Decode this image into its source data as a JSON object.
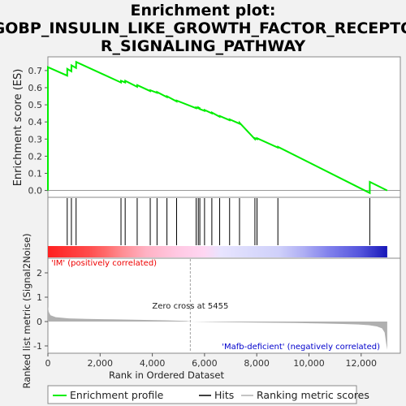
{
  "title_line1": "Enrichment plot:",
  "title_line2": "GOBP_INSULIN_LIKE_GROWTH_FACTOR_RECEPTO",
  "title_line3": "R_SIGNALING_PATHWAY",
  "colors": {
    "es_line": "#00ee00",
    "hits": "#000000",
    "metric_fill": "#b0b0b0",
    "positive_label": "#ee0000",
    "negative_label": "#0000cc",
    "zero_cross_line": "#a0a0a0",
    "frame_bg": "#f2f2f2"
  },
  "chart_data": {
    "type": "line",
    "top_panel": {
      "ylabel": "Enrichment score (ES)",
      "ylim": [
        -0.04,
        0.78
      ],
      "yticks": [
        0.0,
        0.1,
        0.2,
        0.3,
        0.4,
        0.5,
        0.6,
        0.7
      ],
      "ytick_labels": [
        "0.0",
        "0.1",
        "0.2",
        "0.3",
        "0.4",
        "0.5",
        "0.6",
        "0.7"
      ],
      "series": [
        {
          "name": "Enrichment profile",
          "x": [
            0,
            1,
            740,
            741,
            900,
            901,
            1080,
            1081,
            2800,
            2801,
            2960,
            2961,
            3420,
            3421,
            3920,
            3921,
            4180,
            4181,
            4560,
            4561,
            4930,
            4931,
            5680,
            5681,
            5760,
            5761,
            5820,
            5821,
            6000,
            6001,
            6280,
            6281,
            6580,
            6581,
            6960,
            6961,
            7340,
            7341,
            7930,
            7931,
            8010,
            8011,
            8810,
            8811,
            12330,
            12331,
            13000
          ],
          "y": [
            0.0,
            0.72,
            0.67,
            0.71,
            0.695,
            0.73,
            0.715,
            0.75,
            0.63,
            0.64,
            0.63,
            0.64,
            0.605,
            0.615,
            0.58,
            0.585,
            0.57,
            0.575,
            0.545,
            0.55,
            0.52,
            0.525,
            0.48,
            0.485,
            0.48,
            0.485,
            0.48,
            0.475,
            0.465,
            0.47,
            0.45,
            0.455,
            0.43,
            0.435,
            0.41,
            0.415,
            0.39,
            0.395,
            0.3,
            0.305,
            0.3,
            0.305,
            0.25,
            0.255,
            -0.015,
            0.05,
            0.0
          ]
        }
      ]
    },
    "hits": [
      740,
      900,
      1080,
      2800,
      2960,
      3420,
      3920,
      4180,
      4560,
      4930,
      5680,
      5760,
      5820,
      6000,
      6280,
      6580,
      6960,
      7340,
      7930,
      8010,
      8810,
      12330
    ],
    "bottom_panel": {
      "ylabel": "Ranked list metric (Signal2Noise)",
      "ylim": [
        -1.3,
        2.6
      ],
      "yticks": [
        -1,
        0,
        1,
        2
      ],
      "ytick_labels": [
        "-1",
        "0",
        "1",
        "2"
      ],
      "metric_curve": {
        "name": "Ranking metric scores",
        "x": [
          0,
          30,
          100,
          300,
          800,
          1500,
          2500,
          3500,
          4500,
          5300,
          5455,
          6500,
          8000,
          9500,
          10500,
          11300,
          11900,
          12300,
          12600,
          12800,
          12900,
          12960,
          13000
        ],
        "y": [
          0.62,
          0.4,
          0.26,
          0.18,
          0.13,
          0.11,
          0.09,
          0.07,
          0.05,
          0.025,
          0.0,
          -0.02,
          -0.04,
          -0.06,
          -0.08,
          -0.1,
          -0.12,
          -0.15,
          -0.2,
          -0.28,
          -0.45,
          -0.9,
          -1.15
        ]
      },
      "zero_cross_label": "Zero cross at 5455",
      "zero_cross_x": 5455,
      "positive_label": "'IM' (positively correlated)",
      "negative_label": "'Mafb-deficient' (negatively correlated)"
    },
    "xlabel": "Rank in Ordered Dataset",
    "xlim": [
      0,
      13500
    ],
    "xticks": [
      0,
      2000,
      4000,
      6000,
      8000,
      10000,
      12000
    ],
    "xtick_labels": [
      "0",
      "2,000",
      "4,000",
      "6,000",
      "8,000",
      "10,000",
      "12,000"
    ],
    "n_genes": 13000,
    "legend": {
      "placement": "bottom",
      "entries": [
        "Enrichment profile",
        "Hits",
        "Ranking metric scores"
      ]
    }
  }
}
